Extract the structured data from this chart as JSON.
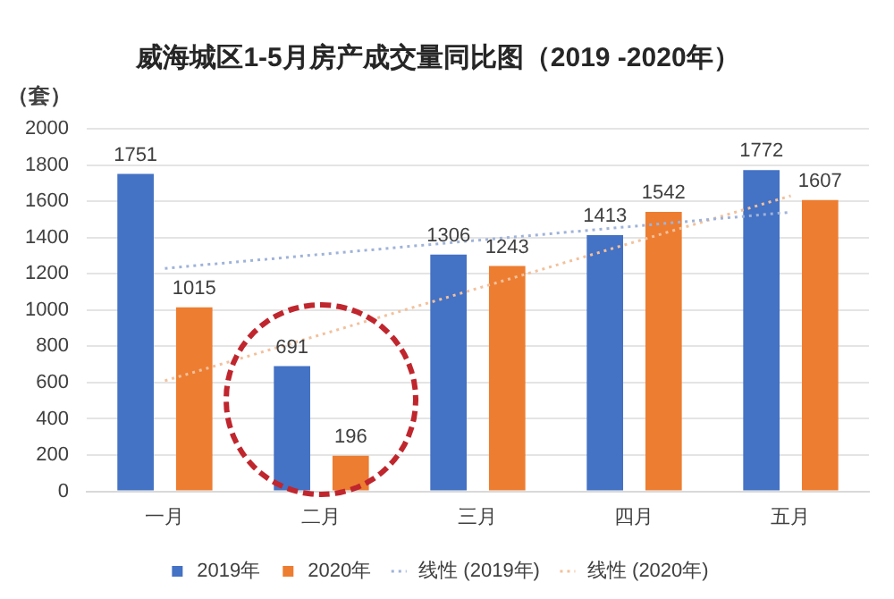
{
  "chart_data": {
    "type": "bar",
    "title": "威海城区1-5月房产成交量同比图（2019 -2020年）",
    "ylabel": "（套）",
    "categories": [
      "一月",
      "二月",
      "三月",
      "四月",
      "五月"
    ],
    "series": [
      {
        "name": "2019年",
        "color": "#4472c4",
        "values": [
          1751,
          691,
          1306,
          1413,
          1772
        ],
        "value_labels": [
          "1751",
          "691",
          "1306",
          "1413",
          "1772"
        ]
      },
      {
        "name": "2020年",
        "color": "#ed7d31",
        "values": [
          1015,
          196,
          1243,
          1542,
          1607
        ],
        "value_labels": [
          "1015",
          "196",
          "1243",
          "1542",
          "1607"
        ]
      },
      {
        "name": "线性 (2019年)",
        "type": "line",
        "color": "#9fb3d9",
        "x": [
          "一月",
          "五月"
        ],
        "values": [
          1230,
          1540
        ],
        "line_style": "dotted",
        "marker": "none"
      },
      {
        "name": "线性 (2020年)",
        "type": "line",
        "color": "#f2c19c",
        "x": [
          "一月",
          "五月"
        ],
        "values": [
          610,
          1630
        ],
        "line_style": "dotted",
        "marker": "none"
      }
    ],
    "ylim": [
      0,
      2000
    ],
    "yticks": [
      0,
      200,
      400,
      600,
      800,
      1000,
      1200,
      1400,
      1600,
      1800,
      2000
    ],
    "grid": "y",
    "legend": "bottom"
  }
}
